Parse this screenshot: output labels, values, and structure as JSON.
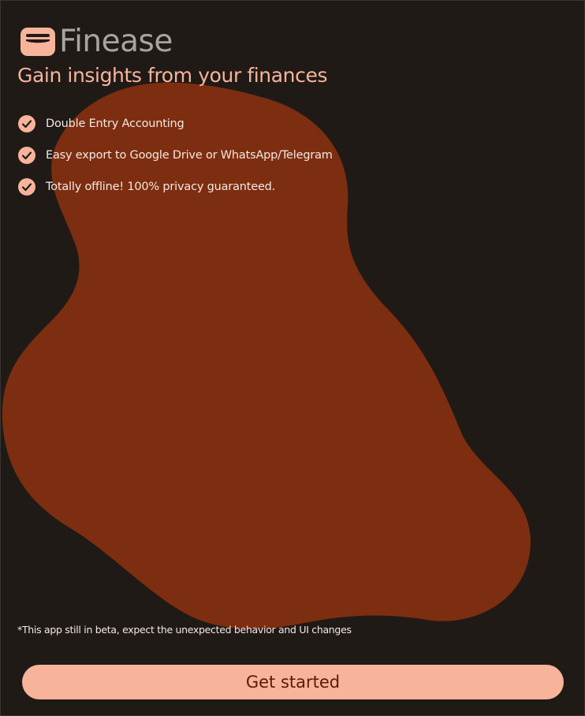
{
  "app": {
    "name": "Finease",
    "tagline": "Gain insights from your finances",
    "logo_icon": "wallet-icon"
  },
  "features": [
    {
      "icon": "check-circle-icon",
      "label": "Double Entry Accounting"
    },
    {
      "icon": "check-circle-icon",
      "label": "Easy export to Google Drive or WhatsApp/Telegram"
    },
    {
      "icon": "check-circle-icon",
      "label": "Totally offline! 100% privacy guaranteed."
    }
  ],
  "disclaimer": "*This app still in beta, expect the unexpected behavior and UI changes",
  "cta": {
    "label": "Get started"
  },
  "colors": {
    "background": "#201a17",
    "blob": "#7d2e10",
    "accent": "#f7b49a",
    "accent_text": "#5e1a04",
    "title_gray": "#a9a3a1",
    "body_text": "#f3e8e3"
  }
}
